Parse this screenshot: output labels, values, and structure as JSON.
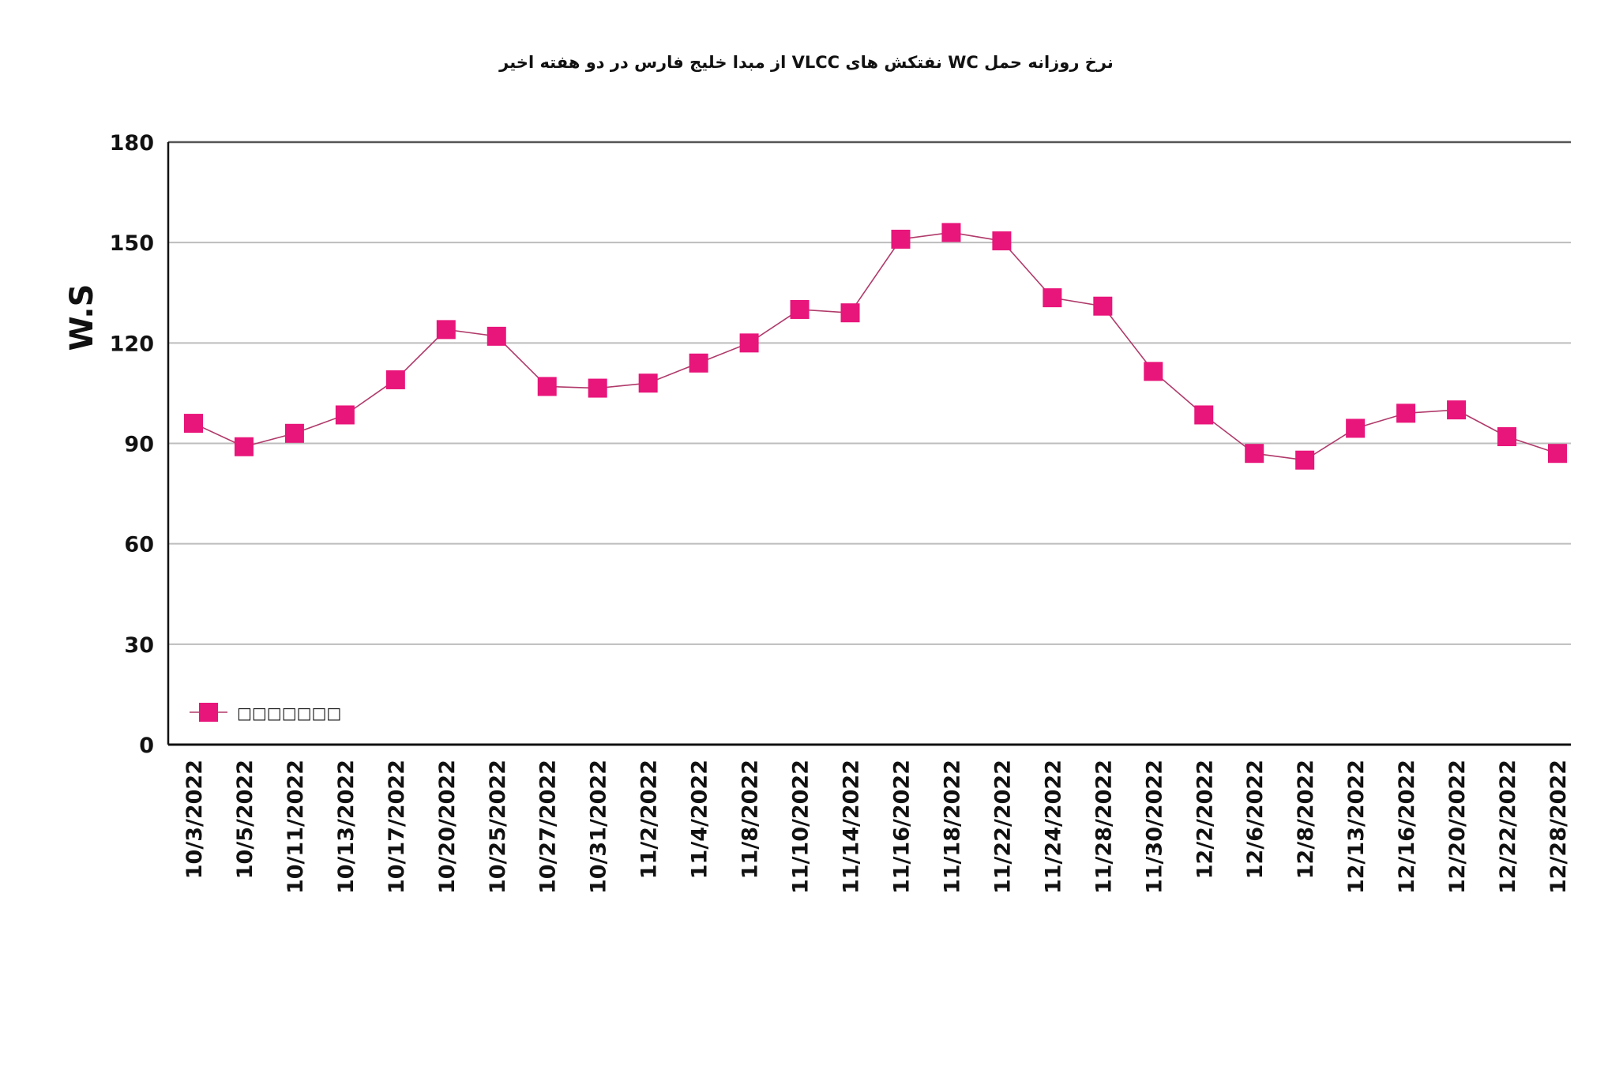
{
  "chart_data": {
    "type": "line",
    "title": "نرخ روزانه حمل WC نفتکش های VLCC از مبدا خلیج فارس در دو هفته اخیر",
    "xlabel": "",
    "ylabel": "W.S",
    "ylim": [
      0,
      180
    ],
    "yticks": [
      0,
      30,
      60,
      90,
      120,
      150,
      180
    ],
    "grid": true,
    "legend_placement": "bottom-left",
    "categories": [
      "10/3/2022",
      "10/5/2022",
      "10/11/2022",
      "10/13/2022",
      "10/17/2022",
      "10/20/2022",
      "10/25/2022",
      "10/27/2022",
      "10/31/2022",
      "11/2/2022",
      "11/4/2022",
      "11/8/2022",
      "11/10/2022",
      "11/14/2022",
      "11/16/2022",
      "11/18/2022",
      "11/22/2022",
      "11/24/2022",
      "11/28/2022",
      "11/30/2022",
      "12/2/2022",
      "12/6/2022",
      "12/8/2022",
      "12/13/2022",
      "12/16/2022",
      "12/20/2022",
      "12/22/2022",
      "12/28/2022"
    ],
    "series": [
      {
        "name": "□□□□□□□",
        "color": "#e8157a",
        "values": [
          96,
          89,
          93,
          98.5,
          109,
          124,
          122,
          107,
          106.5,
          108,
          114,
          120,
          130,
          129,
          151,
          153,
          150.5,
          133.5,
          131,
          111.5,
          98.5,
          87,
          85,
          94.5,
          99,
          100,
          92,
          87
        ]
      }
    ]
  }
}
